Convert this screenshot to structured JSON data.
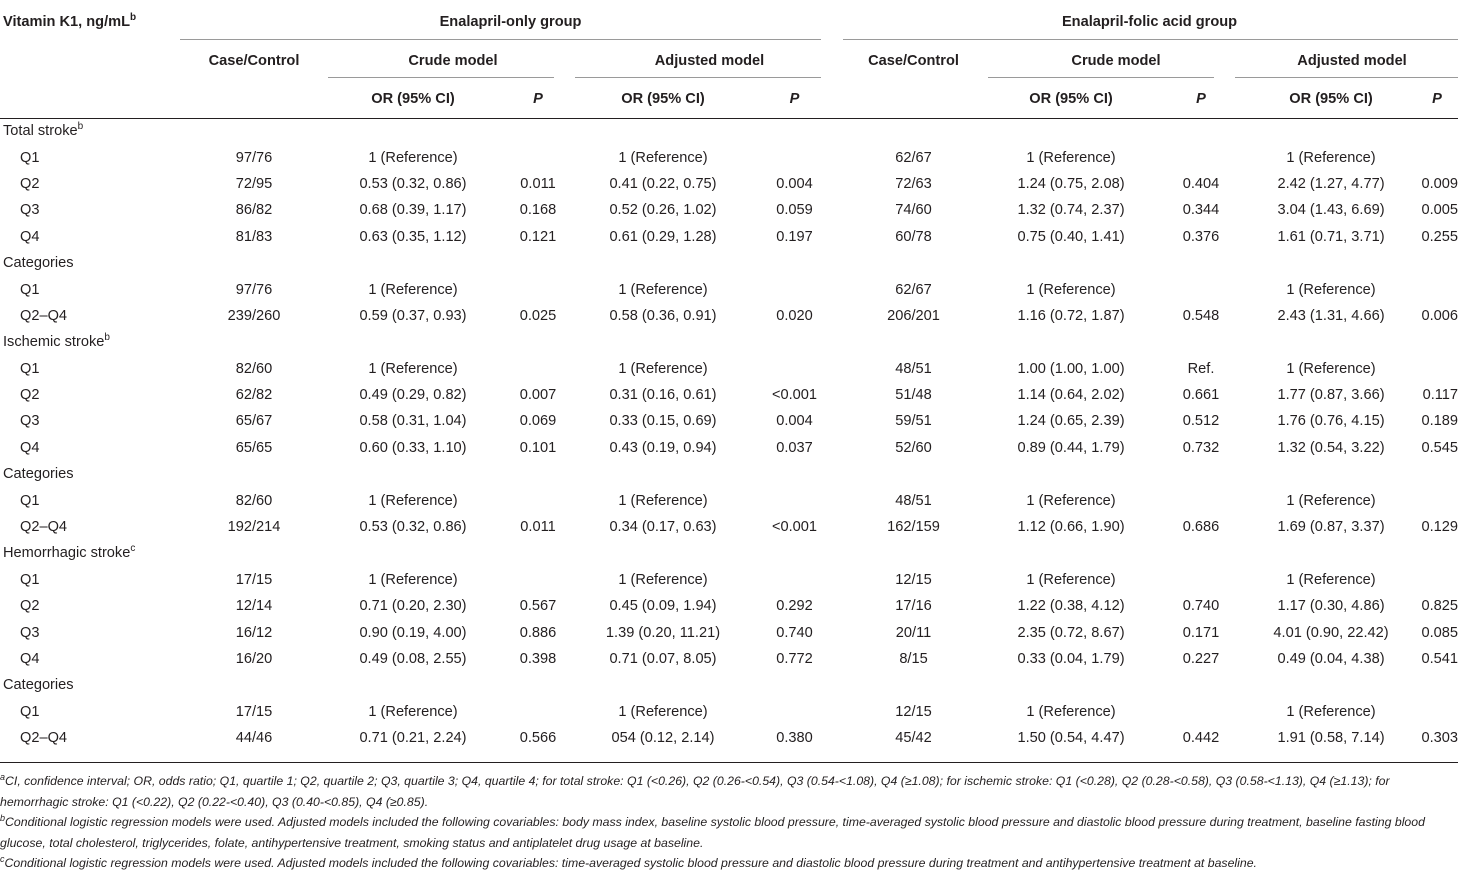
{
  "header": {
    "row_label": "Vitamin K1, ng/mL",
    "row_label_sup": "b",
    "group1": "Enalapril-only group",
    "group2": "Enalapril-folic acid group",
    "case_control": "Case/Control",
    "crude": "Crude model",
    "adjusted": "Adjusted model",
    "or_ci": "OR (95% CI)",
    "p": "P"
  },
  "sections": [
    {
      "title": "Total stroke",
      "sup": "b",
      "rows": [
        {
          "label": "Q1",
          "cells": [
            "97/76",
            "1 (Reference)",
            "",
            "1 (Reference)",
            "",
            "62/67",
            "1 (Reference)",
            "",
            "1 (Reference)",
            ""
          ]
        },
        {
          "label": "Q2",
          "cells": [
            "72/95",
            "0.53 (0.32, 0.86)",
            "0.011",
            "0.41 (0.22, 0.75)",
            "0.004",
            "72/63",
            "1.24 (0.75, 2.08)",
            "0.404",
            "2.42 (1.27, 4.77)",
            "0.009"
          ]
        },
        {
          "label": "Q3",
          "cells": [
            "86/82",
            "0.68 (0.39, 1.17)",
            "0.168",
            "0.52 (0.26, 1.02)",
            "0.059",
            "74/60",
            "1.32 (0.74, 2.37)",
            "0.344",
            "3.04 (1.43, 6.69)",
            "0.005"
          ]
        },
        {
          "label": "Q4",
          "cells": [
            "81/83",
            "0.63 (0.35, 1.12)",
            "0.121",
            "0.61 (0.29, 1.28)",
            "0.197",
            "60/78",
            "0.75 (0.40, 1.41)",
            "0.376",
            "1.61 (0.71, 3.71)",
            "0.255"
          ]
        }
      ],
      "categories_label": "Categories",
      "categories": [
        {
          "label": "Q1",
          "cells": [
            "97/76",
            "1 (Reference)",
            "",
            "1 (Reference)",
            "",
            "62/67",
            "1 (Reference)",
            "",
            "1 (Reference)",
            ""
          ]
        },
        {
          "label": "Q2–Q4",
          "cells": [
            "239/260",
            "0.59 (0.37, 0.93)",
            "0.025",
            "0.58 (0.36, 0.91)",
            "0.020",
            "206/201",
            "1.16 (0.72, 1.87)",
            "0.548",
            "2.43 (1.31, 4.66)",
            "0.006"
          ]
        }
      ]
    },
    {
      "title": "Ischemic stroke",
      "sup": "b",
      "rows": [
        {
          "label": "Q1",
          "cells": [
            "82/60",
            "1 (Reference)",
            "",
            "1 (Reference)",
            "",
            "48/51",
            "1.00 (1.00, 1.00)",
            "Ref.",
            "1 (Reference)",
            ""
          ]
        },
        {
          "label": "Q2",
          "cells": [
            "62/82",
            "0.49 (0.29, 0.82)",
            "0.007",
            "0.31 (0.16, 0.61)",
            "<0.001",
            "51/48",
            "1.14 (0.64, 2.02)",
            "0.661",
            "1.77 (0.87, 3.66)",
            "0.117"
          ]
        },
        {
          "label": "Q3",
          "cells": [
            "65/67",
            "0.58 (0.31, 1.04)",
            "0.069",
            "0.33 (0.15, 0.69)",
            "0.004",
            "59/51",
            "1.24 (0.65, 2.39)",
            "0.512",
            "1.76 (0.76, 4.15)",
            "0.189"
          ]
        },
        {
          "label": "Q4",
          "cells": [
            "65/65",
            "0.60 (0.33, 1.10)",
            "0.101",
            "0.43 (0.19, 0.94)",
            "0.037",
            "52/60",
            "0.89 (0.44, 1.79)",
            "0.732",
            "1.32 (0.54, 3.22)",
            "0.545"
          ]
        }
      ],
      "categories_label": "Categories",
      "categories": [
        {
          "label": "Q1",
          "cells": [
            "82/60",
            "1 (Reference)",
            "",
            "1 (Reference)",
            "",
            "48/51",
            "1 (Reference)",
            "",
            "1 (Reference)",
            ""
          ]
        },
        {
          "label": "Q2–Q4",
          "cells": [
            "192/214",
            "0.53 (0.32, 0.86)",
            "0.011",
            "0.34 (0.17, 0.63)",
            "<0.001",
            "162/159",
            "1.12 (0.66, 1.90)",
            "0.686",
            "1.69 (0.87, 3.37)",
            "0.129"
          ]
        }
      ]
    },
    {
      "title": "Hemorrhagic stroke",
      "sup": "c",
      "rows": [
        {
          "label": "Q1",
          "cells": [
            "17/15",
            "1 (Reference)",
            "",
            "1 (Reference)",
            "",
            "12/15",
            "1 (Reference)",
            "",
            "1 (Reference)",
            ""
          ]
        },
        {
          "label": "Q2",
          "cells": [
            "12/14",
            "0.71 (0.20, 2.30)",
            "0.567",
            "0.45 (0.09, 1.94)",
            "0.292",
            "17/16",
            "1.22 (0.38, 4.12)",
            "0.740",
            "1.17 (0.30, 4.86)",
            "0.825"
          ]
        },
        {
          "label": "Q3",
          "cells": [
            "16/12",
            "0.90 (0.19, 4.00)",
            "0.886",
            "1.39 (0.20, 11.21)",
            "0.740",
            "20/11",
            "2.35 (0.72, 8.67)",
            "0.171",
            "4.01 (0.90, 22.42)",
            "0.085"
          ]
        },
        {
          "label": "Q4",
          "cells": [
            "16/20",
            "0.49 (0.08, 2.55)",
            "0.398",
            "0.71 (0.07, 8.05)",
            "0.772",
            "8/15",
            "0.33 (0.04, 1.79)",
            "0.227",
            "0.49 (0.04, 4.38)",
            "0.541"
          ]
        }
      ],
      "categories_label": "Categories",
      "categories": [
        {
          "label": "Q1",
          "cells": [
            "17/15",
            "1 (Reference)",
            "",
            "1 (Reference)",
            "",
            "12/15",
            "1 (Reference)",
            "",
            "1 (Reference)",
            ""
          ]
        },
        {
          "label": "Q2–Q4",
          "cells": [
            "44/46",
            "0.71 (0.21, 2.24)",
            "0.566",
            "054 (0.12, 2.14)",
            "0.380",
            "45/42",
            "1.50 (0.54, 4.47)",
            "0.442",
            "1.91 (0.58, 7.14)",
            "0.303"
          ]
        }
      ]
    }
  ],
  "footnotes": [
    {
      "mark": "a",
      "text": "CI, confidence interval; OR, odds ratio; Q1, quartile 1; Q2, quartile 2; Q3, quartile 3; Q4, quartile 4; for total stroke: Q1 (<0.26), Q2 (0.26-<0.54), Q3 (0.54-<1.08), Q4 (≥1.08); for ischemic stroke: Q1 (<0.28), Q2 (0.28-<0.58), Q3 (0.58-<1.13), Q4 (≥1.13); for hemorrhagic stroke: Q1 (<0.22), Q2 (0.22-<0.40), Q3 (0.40-<0.85), Q4 (≥0.85)."
    },
    {
      "mark": "b",
      "text": "Conditional logistic regression models were used. Adjusted models included the following covariables: body mass index, baseline systolic blood pressure, time-averaged systolic blood pressure and diastolic blood pressure during treatment, baseline fasting blood glucose, total cholesterol, triglycerides, folate, antihypertensive treatment, smoking status and antiplatelet drug usage at baseline."
    },
    {
      "mark": "c",
      "text": "Conditional logistic regression models were used. Adjusted models included the following covariables: time-averaged systolic blood pressure and diastolic blood pressure during treatment and antihypertensive treatment at baseline."
    }
  ]
}
